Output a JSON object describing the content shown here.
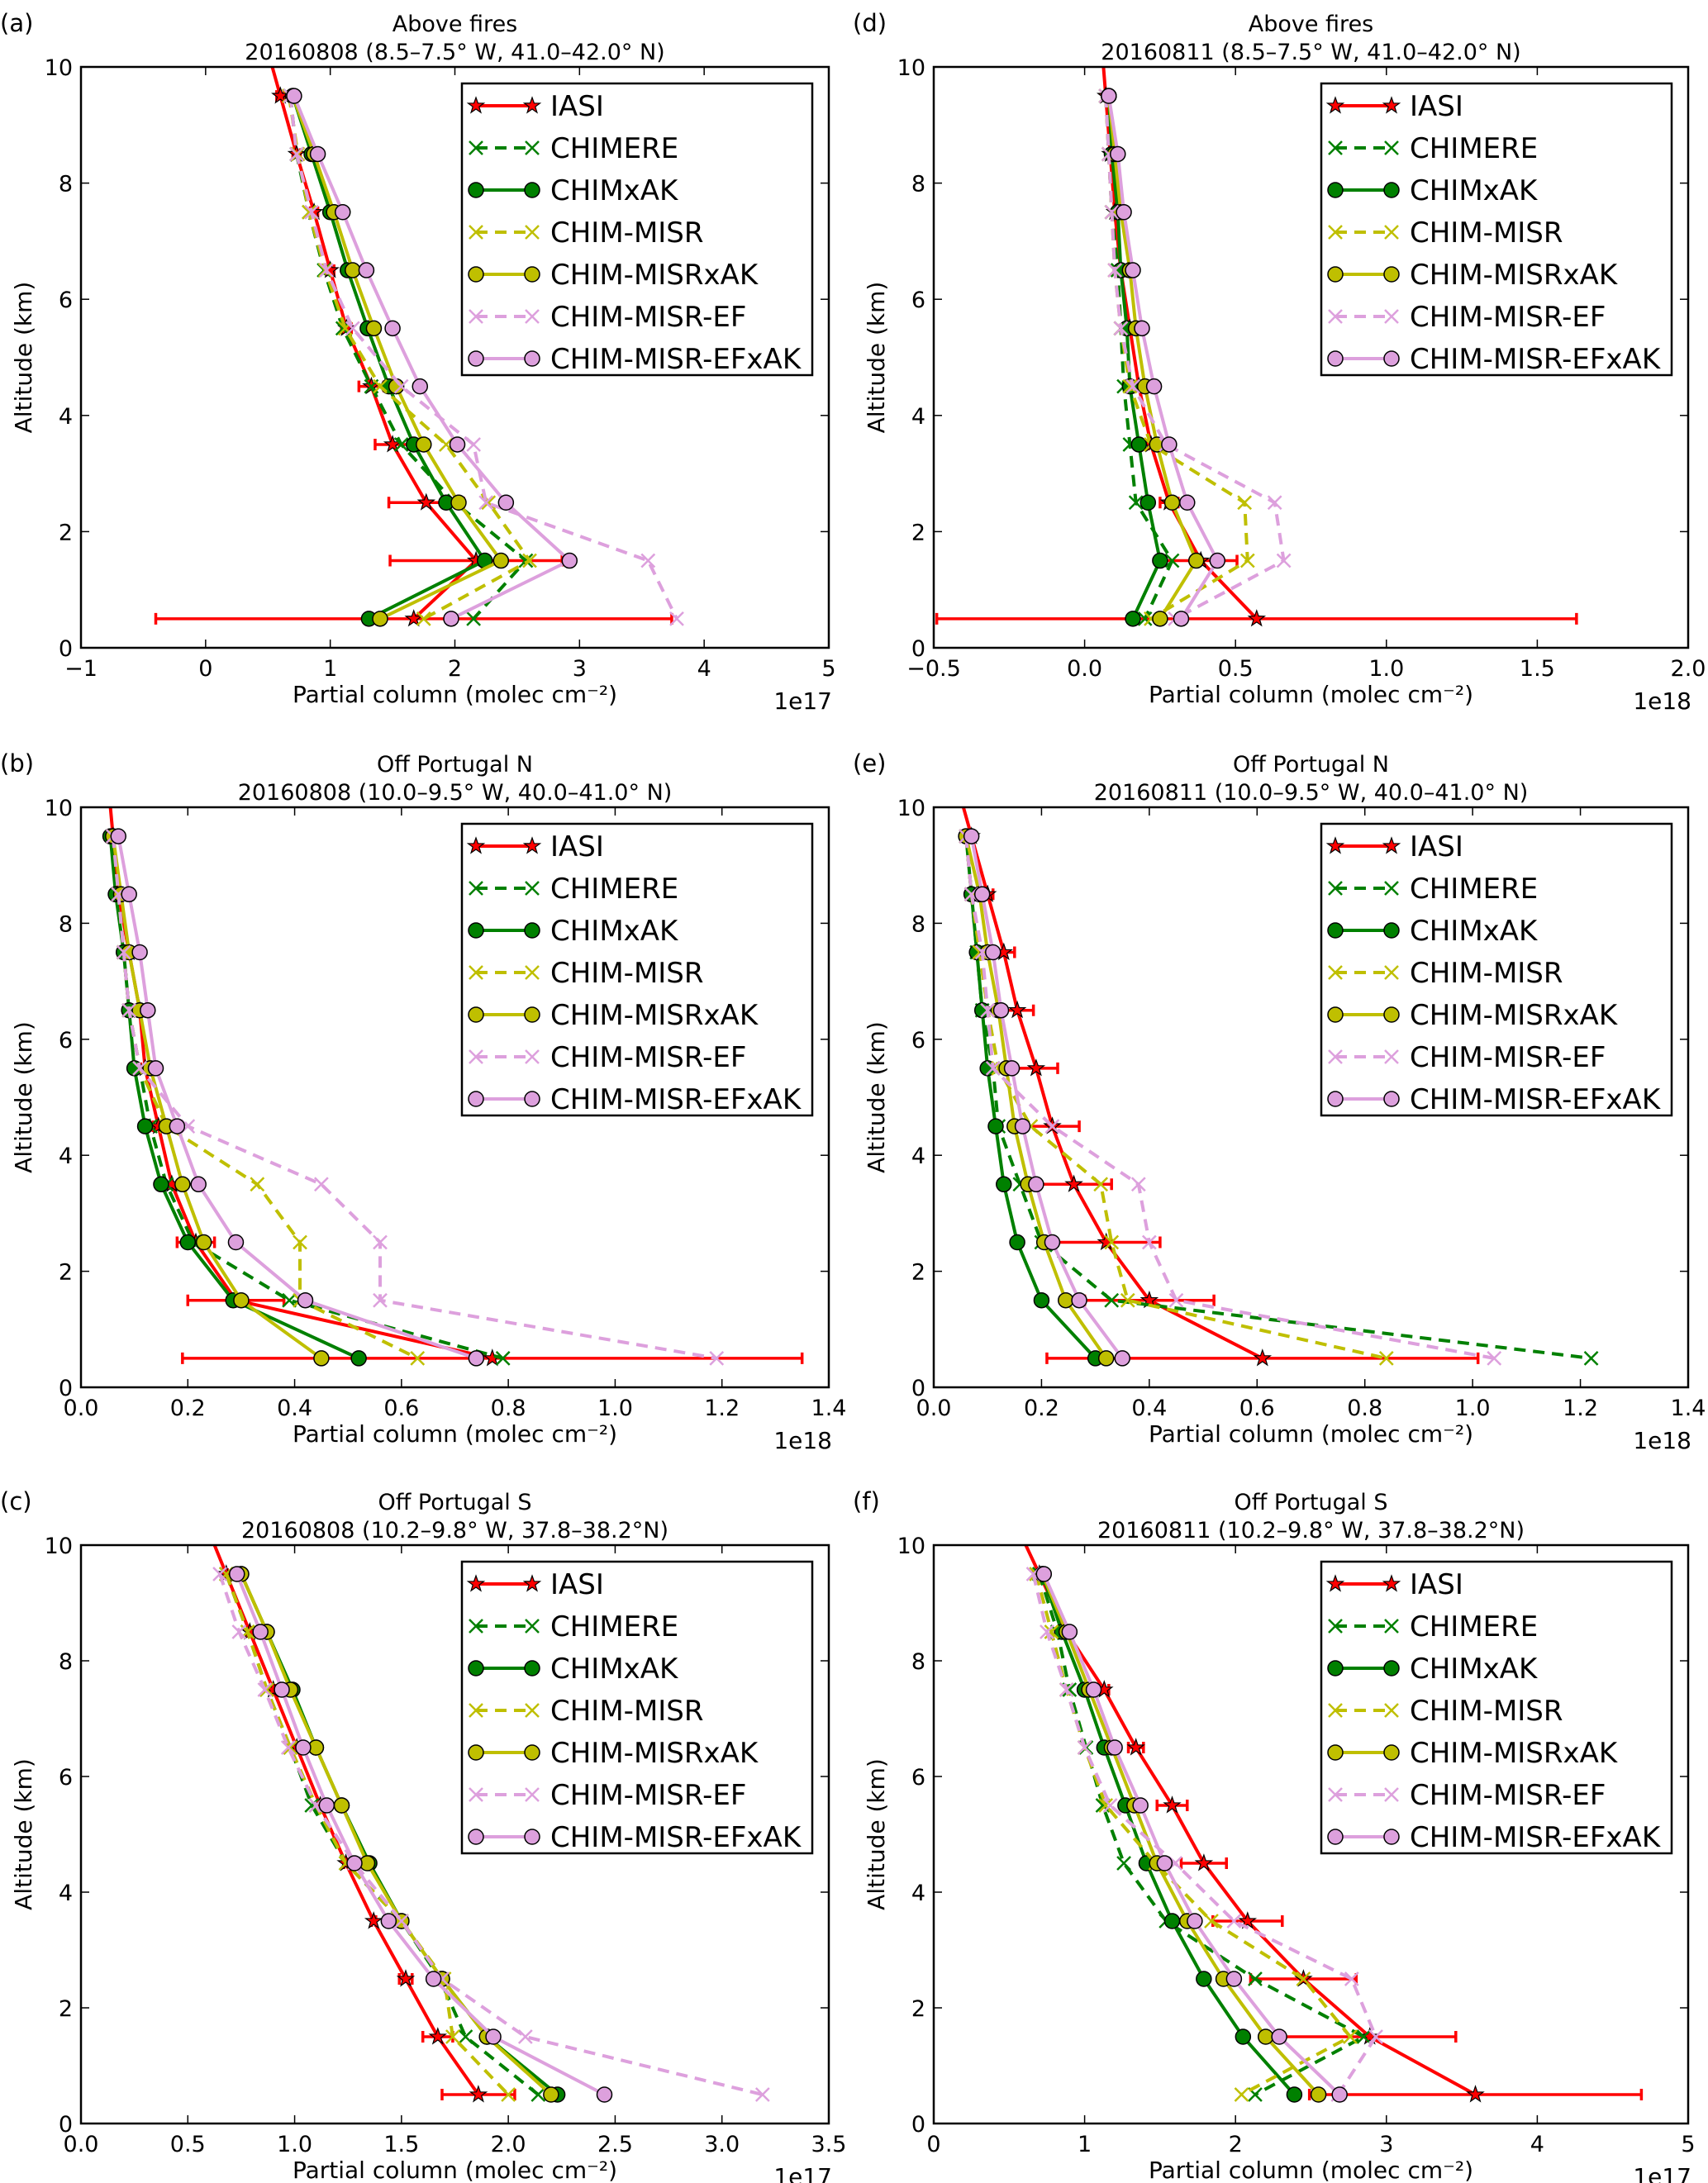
{
  "series_styles": [
    {
      "name": "IASI",
      "color": "#ff0000",
      "dash": false,
      "marker": "star"
    },
    {
      "name": "CHIMERE",
      "color": "#008000",
      "dash": true,
      "marker": "x"
    },
    {
      "name": "CHIMxAK",
      "color": "#008000",
      "dash": false,
      "marker": "circle"
    },
    {
      "name": "CHIM-MISR",
      "color": "#bfbf00",
      "dash": true,
      "marker": "x"
    },
    {
      "name": "CHIM-MISRxAK",
      "color": "#bfbf00",
      "dash": false,
      "marker": "circle"
    },
    {
      "name": "CHIM-MISR-EF",
      "color": "#dda0dd",
      "dash": true,
      "marker": "x"
    },
    {
      "name": "CHIM-MISR-EFxAK",
      "color": "#dda0dd",
      "dash": false,
      "marker": "circle"
    }
  ],
  "chart_data": [
    {
      "type": "line",
      "panel_label": "(a)",
      "title": "Above fires",
      "subtitle": "20160808 (8.5–7.5° W, 41.0–42.0° N)",
      "xlabel": "Partial column (molec cm⁻²)",
      "ylabel": "Altitude (km)",
      "x_scale_label": "1e17",
      "xlim": [
        -1,
        5
      ],
      "xticks": [
        -1,
        0,
        1,
        2,
        3,
        4,
        5
      ],
      "xtick_labels": [
        "−1",
        "0",
        "1",
        "2",
        "3",
        "4",
        "5"
      ],
      "ylim": [
        0,
        10
      ],
      "yticks": [
        0,
        2,
        4,
        6,
        8,
        10
      ],
      "ytick_labels": [
        "0",
        "2",
        "4",
        "6",
        "8",
        "10"
      ],
      "legend": "top-right",
      "altitudes": [
        9.5,
        8.5,
        7.5,
        6.5,
        5.5,
        4.5,
        3.5,
        2.5,
        1.5,
        0.5
      ],
      "series": [
        {
          "name": "IASI",
          "values": [
            0.6,
            0.73,
            0.87,
            1.0,
            1.13,
            1.33,
            1.5,
            1.77,
            2.17,
            1.67
          ],
          "err": [
            0.03,
            0.03,
            0.03,
            0.03,
            0.04,
            0.1,
            0.14,
            0.3,
            0.69,
            2.07
          ]
        },
        {
          "name": "CHIMERE",
          "values": [
            0.68,
            0.73,
            0.83,
            0.95,
            1.1,
            1.33,
            1.57,
            2.0,
            2.57,
            2.15
          ]
        },
        {
          "name": "CHIMxAK",
          "values": [
            0.7,
            0.85,
            1.0,
            1.14,
            1.3,
            1.47,
            1.67,
            1.93,
            2.24,
            1.31
          ]
        },
        {
          "name": "CHIM-MISR",
          "values": [
            0.67,
            0.74,
            0.83,
            0.96,
            1.12,
            1.4,
            1.93,
            2.27,
            2.6,
            1.75
          ]
        },
        {
          "name": "CHIM-MISRxAK",
          "values": [
            0.7,
            0.87,
            1.03,
            1.18,
            1.35,
            1.53,
            1.75,
            2.03,
            2.37,
            1.4
          ]
        },
        {
          "name": "CHIM-MISR-EF",
          "values": [
            0.68,
            0.73,
            0.85,
            0.97,
            1.18,
            1.57,
            2.15,
            2.25,
            3.55,
            3.78
          ]
        },
        {
          "name": "CHIM-MISR-EFxAK",
          "values": [
            0.71,
            0.9,
            1.1,
            1.29,
            1.5,
            1.72,
            2.02,
            2.41,
            2.92,
            1.97
          ]
        }
      ]
    },
    {
      "type": "line",
      "panel_label": "(b)",
      "title": "Off Portugal N",
      "subtitle": "20160808 (10.0–9.5° W, 40.0–41.0° N)",
      "xlabel": "Partial column (molec cm⁻²)",
      "ylabel": "Altitude (km)",
      "x_scale_label": "1e18",
      "xlim": [
        0,
        1.4
      ],
      "xticks": [
        0,
        0.2,
        0.4,
        0.6,
        0.8,
        1.0,
        1.2,
        1.4
      ],
      "xtick_labels": [
        "0.0",
        "0.2",
        "0.4",
        "0.6",
        "0.8",
        "1.0",
        "1.2",
        "1.4"
      ],
      "ylim": [
        0,
        10
      ],
      "yticks": [
        0,
        2,
        4,
        6,
        8,
        10
      ],
      "ytick_labels": [
        "0",
        "2",
        "4",
        "6",
        "8",
        "10"
      ],
      "legend": "top-right",
      "altitudes": [
        9.5,
        8.5,
        7.5,
        6.5,
        5.5,
        4.5,
        3.5,
        2.5,
        1.5,
        0.5
      ],
      "series": [
        {
          "name": "IASI",
          "values": [
            0.06,
            0.07,
            0.09,
            0.11,
            0.12,
            0.145,
            0.17,
            0.215,
            0.29,
            0.77
          ],
          "err": [
            0.003,
            0.004,
            0.005,
            0.006,
            0.008,
            0.01,
            0.015,
            0.035,
            0.09,
            0.58
          ]
        },
        {
          "name": "CHIMERE",
          "values": [
            0.06,
            0.07,
            0.08,
            0.09,
            0.11,
            0.13,
            0.16,
            0.21,
            0.39,
            0.79
          ]
        },
        {
          "name": "CHIMxAK",
          "values": [
            0.055,
            0.065,
            0.08,
            0.09,
            0.1,
            0.12,
            0.15,
            0.2,
            0.285,
            0.52
          ]
        },
        {
          "name": "CHIM-MISR",
          "values": [
            0.06,
            0.07,
            0.08,
            0.09,
            0.11,
            0.16,
            0.33,
            0.41,
            0.41,
            0.63
          ]
        },
        {
          "name": "CHIM-MISRxAK",
          "values": [
            0.06,
            0.075,
            0.09,
            0.11,
            0.13,
            0.16,
            0.19,
            0.23,
            0.3,
            0.45
          ]
        },
        {
          "name": "CHIM-MISR-EF",
          "values": [
            0.06,
            0.07,
            0.08,
            0.09,
            0.11,
            0.2,
            0.45,
            0.56,
            0.56,
            1.19
          ]
        },
        {
          "name": "CHIM-MISR-EFxAK",
          "values": [
            0.07,
            0.09,
            0.11,
            0.125,
            0.14,
            0.18,
            0.22,
            0.29,
            0.42,
            0.74
          ]
        }
      ]
    },
    {
      "type": "line",
      "panel_label": "(c)",
      "title": "Off Portugal S",
      "subtitle": "20160808 (10.2–9.8° W, 37.8–38.2°N)",
      "xlabel": "Partial column (molec cm⁻²)",
      "ylabel": "Altitude (km)",
      "x_scale_label": "1e17",
      "xlim": [
        0,
        3.5
      ],
      "xticks": [
        0,
        0.5,
        1.0,
        1.5,
        2.0,
        2.5,
        3.0,
        3.5
      ],
      "xtick_labels": [
        "0.0",
        "0.5",
        "1.0",
        "1.5",
        "2.0",
        "2.5",
        "3.0",
        "3.5"
      ],
      "ylim": [
        0,
        10
      ],
      "yticks": [
        0,
        2,
        4,
        6,
        8,
        10
      ],
      "ytick_labels": [
        "0",
        "2",
        "4",
        "6",
        "8",
        "10"
      ],
      "legend": "top-right",
      "altitudes": [
        9.5,
        8.5,
        7.5,
        6.5,
        5.5,
        4.5,
        3.5,
        2.5,
        1.5,
        0.5
      ],
      "series": [
        {
          "name": "IASI",
          "values": [
            0.68,
            0.79,
            0.9,
            1.01,
            1.12,
            1.24,
            1.37,
            1.52,
            1.67,
            1.86
          ],
          "err": [
            0.005,
            0.005,
            0.006,
            0.008,
            0.01,
            0.01,
            0.01,
            0.03,
            0.07,
            0.17
          ]
        },
        {
          "name": "CHIMERE",
          "values": [
            0.68,
            0.78,
            0.87,
            0.98,
            1.08,
            1.24,
            1.5,
            1.68,
            1.8,
            2.14
          ]
        },
        {
          "name": "CHIMxAK",
          "values": [
            0.75,
            0.87,
            0.99,
            1.1,
            1.22,
            1.35,
            1.5,
            1.69,
            1.9,
            2.23
          ]
        },
        {
          "name": "CHIM-MISR",
          "values": [
            0.68,
            0.78,
            0.87,
            0.98,
            1.1,
            1.24,
            1.5,
            1.7,
            1.74,
            2.0
          ]
        },
        {
          "name": "CHIM-MISRxAK",
          "values": [
            0.75,
            0.87,
            0.98,
            1.1,
            1.22,
            1.34,
            1.5,
            1.69,
            1.9,
            2.2
          ]
        },
        {
          "name": "CHIM-MISR-EF",
          "values": [
            0.65,
            0.74,
            0.86,
            0.97,
            1.1,
            1.28,
            1.5,
            1.69,
            2.08,
            3.19
          ]
        },
        {
          "name": "CHIM-MISR-EFxAK",
          "values": [
            0.73,
            0.84,
            0.94,
            1.04,
            1.15,
            1.28,
            1.44,
            1.65,
            1.93,
            2.45
          ]
        }
      ]
    },
    {
      "type": "line",
      "panel_label": "(d)",
      "title": "Above fires",
      "subtitle": "20160811 (8.5–7.5° W, 41.0–42.0° N)",
      "xlabel": "Partial column (molec cm⁻²)",
      "ylabel": "Altitude (km)",
      "x_scale_label": "1e18",
      "xlim": [
        -0.5,
        2.0
      ],
      "xticks": [
        -0.5,
        0,
        0.5,
        1.0,
        1.5,
        2.0
      ],
      "xtick_labels": [
        "−0.5",
        "0.0",
        "0.5",
        "1.0",
        "1.5",
        "2.0"
      ],
      "ylim": [
        0,
        10
      ],
      "yticks": [
        0,
        2,
        4,
        6,
        8,
        10
      ],
      "ytick_labels": [
        "0",
        "2",
        "4",
        "6",
        "8",
        "10"
      ],
      "legend": "top-right",
      "altitudes": [
        9.5,
        8.5,
        7.5,
        6.5,
        5.5,
        4.5,
        3.5,
        2.5,
        1.5,
        0.5
      ],
      "series": [
        {
          "name": "IASI",
          "values": [
            0.07,
            0.085,
            0.1,
            0.12,
            0.15,
            0.18,
            0.22,
            0.28,
            0.385,
            0.57
          ],
          "err": [
            0.003,
            0.003,
            0.004,
            0.005,
            0.005,
            0.006,
            0.008,
            0.03,
            0.12,
            1.06
          ]
        },
        {
          "name": "CHIMERE",
          "values": [
            0.07,
            0.08,
            0.09,
            0.11,
            0.12,
            0.13,
            0.15,
            0.17,
            0.29,
            0.2
          ]
        },
        {
          "name": "CHIMxAK",
          "values": [
            0.08,
            0.09,
            0.11,
            0.12,
            0.14,
            0.15,
            0.18,
            0.21,
            0.25,
            0.16
          ]
        },
        {
          "name": "CHIM-MISR",
          "values": [
            0.07,
            0.08,
            0.09,
            0.1,
            0.12,
            0.15,
            0.22,
            0.53,
            0.54,
            0.22
          ]
        },
        {
          "name": "CHIM-MISRxAK",
          "values": [
            0.08,
            0.1,
            0.12,
            0.15,
            0.17,
            0.2,
            0.24,
            0.29,
            0.37,
            0.25
          ]
        },
        {
          "name": "CHIM-MISR-EF",
          "values": [
            0.07,
            0.08,
            0.09,
            0.1,
            0.12,
            0.16,
            0.27,
            0.63,
            0.66,
            0.3
          ]
        },
        {
          "name": "CHIM-MISR-EFxAK",
          "values": [
            0.08,
            0.11,
            0.13,
            0.16,
            0.19,
            0.23,
            0.28,
            0.34,
            0.44,
            0.32
          ]
        }
      ]
    },
    {
      "type": "line",
      "panel_label": "(e)",
      "title": "Off Portugal N",
      "subtitle": "20160811 (10.0–9.5° W, 40.0–41.0° N)",
      "xlabel": "Partial column (molec cm⁻²)",
      "ylabel": "Altitude (km)",
      "x_scale_label": "1e18",
      "xlim": [
        0,
        1.4
      ],
      "xticks": [
        0,
        0.2,
        0.4,
        0.6,
        0.8,
        1.0,
        1.2,
        1.4
      ],
      "xtick_labels": [
        "0.0",
        "0.2",
        "0.4",
        "0.6",
        "0.8",
        "1.0",
        "1.2",
        "1.4"
      ],
      "ylim": [
        0,
        10
      ],
      "yticks": [
        0,
        2,
        4,
        6,
        8,
        10
      ],
      "ytick_labels": [
        "0",
        "2",
        "4",
        "6",
        "8",
        "10"
      ],
      "legend": "top-right",
      "altitudes": [
        9.5,
        8.5,
        7.5,
        6.5,
        5.5,
        4.5,
        3.5,
        2.5,
        1.5,
        0.5
      ],
      "series": [
        {
          "name": "IASI",
          "values": [
            0.07,
            0.1,
            0.13,
            0.155,
            0.19,
            0.22,
            0.26,
            0.32,
            0.4,
            0.61
          ],
          "err": [
            0.003,
            0.01,
            0.02,
            0.03,
            0.04,
            0.05,
            0.07,
            0.1,
            0.12,
            0.4
          ]
        },
        {
          "name": "CHIMERE",
          "values": [
            0.06,
            0.07,
            0.08,
            0.09,
            0.11,
            0.12,
            0.16,
            0.2,
            0.33,
            1.22
          ]
        },
        {
          "name": "CHIMxAK",
          "values": [
            0.06,
            0.07,
            0.08,
            0.09,
            0.1,
            0.115,
            0.13,
            0.155,
            0.2,
            0.3
          ]
        },
        {
          "name": "CHIM-MISR",
          "values": [
            0.06,
            0.07,
            0.085,
            0.1,
            0.12,
            0.18,
            0.31,
            0.33,
            0.36,
            0.84
          ]
        },
        {
          "name": "CHIM-MISRxAK",
          "values": [
            0.06,
            0.085,
            0.1,
            0.12,
            0.135,
            0.15,
            0.175,
            0.205,
            0.245,
            0.32
          ]
        },
        {
          "name": "CHIM-MISR-EF",
          "values": [
            0.06,
            0.07,
            0.09,
            0.1,
            0.11,
            0.22,
            0.38,
            0.4,
            0.45,
            1.04
          ]
        },
        {
          "name": "CHIM-MISR-EFxAK",
          "values": [
            0.07,
            0.09,
            0.11,
            0.125,
            0.145,
            0.165,
            0.19,
            0.22,
            0.27,
            0.35
          ]
        }
      ]
    },
    {
      "type": "line",
      "panel_label": "(f)",
      "title": "Off Portugal S",
      "subtitle": "20160811 (10.2–9.8° W, 37.8–38.2°N)",
      "xlabel": "Partial column (molec cm⁻²)",
      "ylabel": "Altitude (km)",
      "x_scale_label": "1e17",
      "xlim": [
        0,
        5
      ],
      "xticks": [
        0,
        1,
        2,
        3,
        4,
        5
      ],
      "xtick_labels": [
        "0",
        "1",
        "2",
        "3",
        "4",
        "5"
      ],
      "ylim": [
        0,
        10
      ],
      "yticks": [
        0,
        2,
        4,
        6,
        8,
        10
      ],
      "ytick_labels": [
        "0",
        "2",
        "4",
        "6",
        "8",
        "10"
      ],
      "legend": "top-right",
      "altitudes": [
        9.5,
        8.5,
        7.5,
        6.5,
        5.5,
        4.5,
        3.5,
        2.5,
        1.5,
        0.5
      ],
      "series": [
        {
          "name": "IASI",
          "values": [
            0.7,
            0.88,
            1.13,
            1.34,
            1.58,
            1.79,
            2.08,
            2.45,
            2.89,
            3.59
          ],
          "err": [
            0.01,
            0.02,
            0.03,
            0.05,
            0.1,
            0.15,
            0.23,
            0.35,
            0.57,
            1.1
          ]
        },
        {
          "name": "CHIMERE",
          "values": [
            0.7,
            0.82,
            0.9,
            1.01,
            1.12,
            1.26,
            1.54,
            2.13,
            2.85,
            2.13
          ]
        },
        {
          "name": "CHIMxAK",
          "values": [
            0.72,
            0.85,
            1.0,
            1.13,
            1.27,
            1.41,
            1.58,
            1.79,
            2.05,
            2.39
          ]
        },
        {
          "name": "CHIM-MISR",
          "values": [
            0.68,
            0.78,
            0.88,
            1.0,
            1.14,
            1.47,
            1.84,
            2.45,
            2.76,
            2.04
          ]
        },
        {
          "name": "CHIM-MISRxAK",
          "values": [
            0.72,
            0.88,
            1.03,
            1.18,
            1.33,
            1.48,
            1.68,
            1.92,
            2.2,
            2.55
          ]
        },
        {
          "name": "CHIM-MISR-EF",
          "values": [
            0.66,
            0.75,
            0.88,
            1.0,
            1.17,
            1.6,
            1.99,
            2.77,
            2.93,
            2.68
          ]
        },
        {
          "name": "CHIM-MISR-EFxAK",
          "values": [
            0.73,
            0.9,
            1.06,
            1.2,
            1.37,
            1.53,
            1.73,
            1.99,
            2.29,
            2.69
          ]
        }
      ]
    }
  ]
}
